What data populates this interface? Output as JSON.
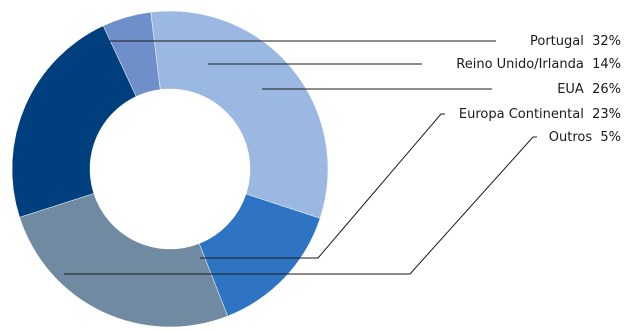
{
  "chart_data": {
    "type": "pie",
    "donut": true,
    "legend": "right",
    "slices": [
      {
        "label": "Portugal",
        "value": 32,
        "value_label": "32%",
        "color": "#9ab8e1"
      },
      {
        "label": "Reino Unido/Irlanda",
        "value": 14,
        "value_label": "14%",
        "color": "#2e74c3"
      },
      {
        "label": "EUA",
        "value": 26,
        "value_label": "26%",
        "color": "#708aa2"
      },
      {
        "label": "Europa Continental",
        "value": 23,
        "value_label": "23%",
        "color": "#003f7d"
      },
      {
        "label": "Outros",
        "value": 5,
        "value_label": "5%",
        "color": "#6f8fcb"
      }
    ]
  }
}
